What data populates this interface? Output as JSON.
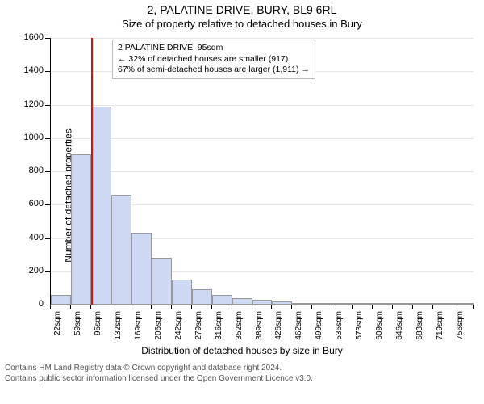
{
  "header": {
    "title1": "2, PALATINE DRIVE, BURY, BL9 6RL",
    "title2": "Size of property relative to detached houses in Bury"
  },
  "chart": {
    "type": "histogram",
    "ylabel": "Number of detached properties",
    "xlabel": "Distribution of detached houses by size in Bury",
    "ylim": [
      0,
      1600
    ],
    "ytick_step": 200,
    "bar_fill": "#cdd9f2",
    "bar_border": "#999999",
    "grid_color": "#e6e6e6",
    "background_color": "#ffffff",
    "marker_value": 95,
    "marker_color": "#ff0000",
    "marker_width": 2,
    "x_start": 22,
    "x_step": 36.7,
    "bar_count": 21,
    "values": [
      60,
      900,
      1190,
      660,
      430,
      280,
      150,
      90,
      60,
      40,
      30,
      20,
      10,
      10,
      6,
      6,
      4,
      4,
      2,
      2,
      2
    ],
    "x_labels": [
      "22sqm",
      "59sqm",
      "95sqm",
      "132sqm",
      "169sqm",
      "206sqm",
      "242sqm",
      "279sqm",
      "316sqm",
      "352sqm",
      "389sqm",
      "426sqm",
      "462sqm",
      "499sqm",
      "536sqm",
      "573sqm",
      "609sqm",
      "646sqm",
      "683sqm",
      "719sqm",
      "756sqm"
    ]
  },
  "legend": {
    "line1": "2 PALATINE DRIVE: 95sqm",
    "line2": "← 32% of detached houses are smaller (917)",
    "line3": "67% of semi-detached houses are larger (1,911) →"
  },
  "footer": {
    "line1": "Contains HM Land Registry data © Crown copyright and database right 2024.",
    "line2": "Contains public sector information licensed under the Open Government Licence v3.0."
  }
}
